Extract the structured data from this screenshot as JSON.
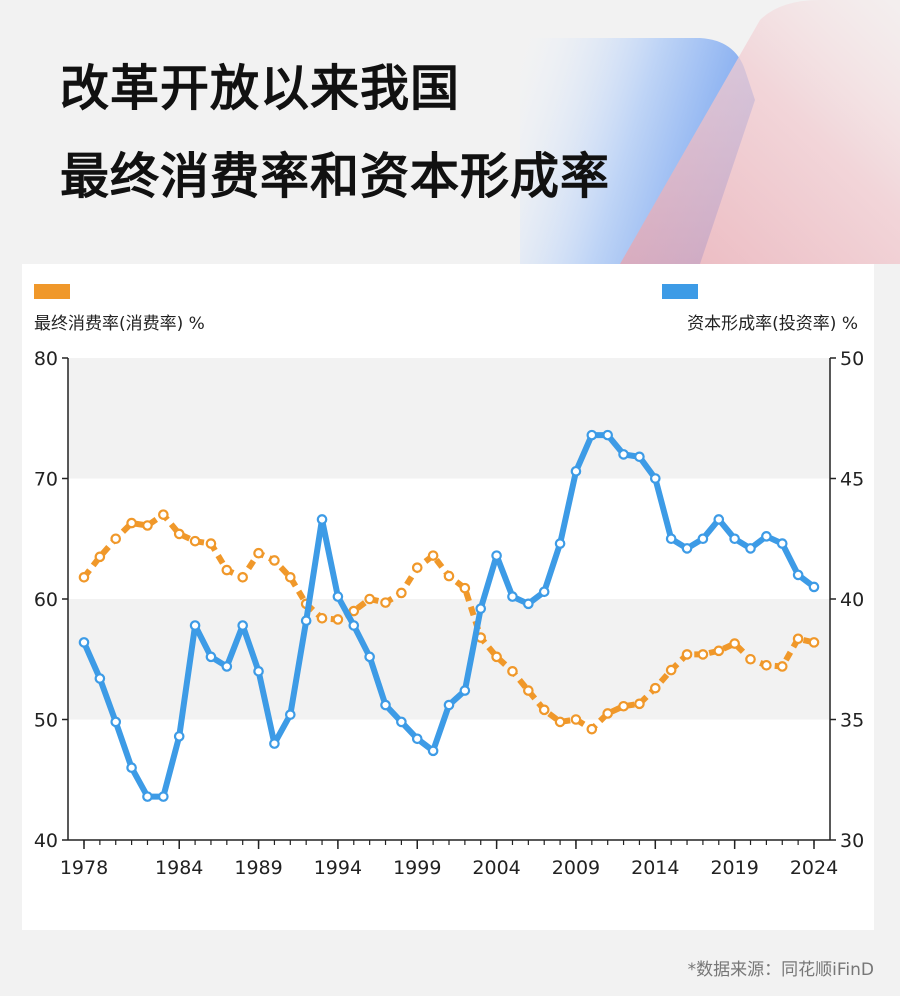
{
  "header": {
    "title_line1": "改革开放以来我国",
    "title_line2": "最终消费率和资本形成率"
  },
  "source": "*数据来源：同花顺iFinD",
  "colors": {
    "consumption": "#f0982a",
    "investment": "#3d9be6",
    "band": "#f2f2f2",
    "axis": "#222222"
  },
  "chart_data": {
    "type": "line",
    "x": [
      1978,
      1979,
      1980,
      1981,
      1982,
      1983,
      1984,
      1985,
      1986,
      1987,
      1988,
      1989,
      1990,
      1991,
      1992,
      1993,
      1994,
      1995,
      1996,
      1997,
      1998,
      1999,
      2000,
      2001,
      2002,
      2003,
      2004,
      2005,
      2006,
      2007,
      2008,
      2009,
      2010,
      2011,
      2012,
      2013,
      2014,
      2015,
      2016,
      2017,
      2018,
      2019,
      2020,
      2021,
      2022,
      2023,
      2024
    ],
    "x_tick_labels": [
      "1978",
      "1984",
      "1989",
      "1994",
      "1999",
      "2004",
      "2009",
      "2014",
      "2019",
      "2024"
    ],
    "left_axis": {
      "label": "最终消费率(消费率) %",
      "ylim": [
        40,
        80
      ],
      "ticks": [
        40,
        50,
        60,
        70,
        80
      ]
    },
    "right_axis": {
      "label": "资本形成率(投资率) %",
      "ylim": [
        30,
        50
      ],
      "ticks": [
        30,
        35,
        40,
        45,
        50
      ]
    },
    "grid_bands": [
      [
        50,
        60
      ],
      [
        70,
        80
      ]
    ],
    "legend_position": "top-left and top-right",
    "series": [
      {
        "name": "最终消费率(消费率) %",
        "axis": "left",
        "style": "dashed",
        "values": [
          61.8,
          63.5,
          65.0,
          66.3,
          66.1,
          67.0,
          65.4,
          64.8,
          64.6,
          62.4,
          61.8,
          63.8,
          63.2,
          61.8,
          59.6,
          58.4,
          58.3,
          59.0,
          60.0,
          59.7,
          60.5,
          62.6,
          63.6,
          61.9,
          60.9,
          56.8,
          55.2,
          54.0,
          52.4,
          50.8,
          49.8,
          50.0,
          49.2,
          50.5,
          51.1,
          51.3,
          52.6,
          54.1,
          55.4,
          55.4,
          55.7,
          56.3,
          55.0,
          54.5,
          54.4,
          56.7,
          56.4
        ]
      },
      {
        "name": "资本形成率(投资率) %",
        "axis": "right",
        "style": "solid",
        "values": [
          38.2,
          36.7,
          34.9,
          33.0,
          31.8,
          31.8,
          34.3,
          38.9,
          37.6,
          37.2,
          38.9,
          37.0,
          34.0,
          35.2,
          39.1,
          43.3,
          40.1,
          38.9,
          37.6,
          35.6,
          34.9,
          34.2,
          33.7,
          35.6,
          36.2,
          39.6,
          41.8,
          40.1,
          39.8,
          40.3,
          42.3,
          45.3,
          46.8,
          46.8,
          46.0,
          45.9,
          45.0,
          42.5,
          42.1,
          42.5,
          43.3,
          42.5,
          42.1,
          42.6,
          42.3,
          41.0,
          40.5
        ]
      }
    ]
  }
}
